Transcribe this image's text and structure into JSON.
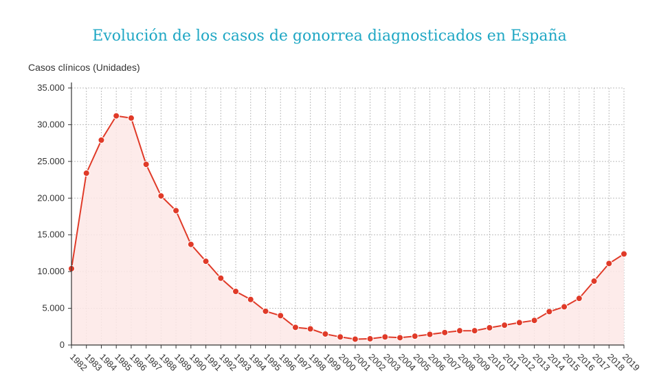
{
  "chart_data": {
    "type": "area",
    "title": "Evolución de los casos de gonorrea diagnosticados en España",
    "ylabel": "Casos clínicos (Unidades)",
    "xlabel": "",
    "x": [
      "1982",
      "1983",
      "1984",
      "1985",
      "1986",
      "1987",
      "1988",
      "1989",
      "1990",
      "1991",
      "1992",
      "1993",
      "1994",
      "1995",
      "1996",
      "1997",
      "1998",
      "1999",
      "2000",
      "2001",
      "2002",
      "2003",
      "2004",
      "2005",
      "2006",
      "2007",
      "2008",
      "2009",
      "2010",
      "2011",
      "2012",
      "2013",
      "2014",
      "2015",
      "2016",
      "2017",
      "2018",
      "2019"
    ],
    "values": [
      10400,
      23400,
      27900,
      31200,
      30900,
      24600,
      20300,
      18300,
      13700,
      11400,
      9100,
      7300,
      6200,
      4600,
      4000,
      2400,
      2200,
      1500,
      1100,
      800,
      850,
      1100,
      1000,
      1200,
      1450,
      1700,
      1950,
      1950,
      2350,
      2700,
      3050,
      3350,
      4550,
      5200,
      6350,
      8700,
      11100,
      12400
    ],
    "ylim": [
      0,
      35000
    ],
    "yticks": [
      "0",
      "5.000",
      "10.000",
      "15.000",
      "20.000",
      "25.000",
      "30.000",
      "35.000"
    ],
    "grid": true,
    "colors": {
      "line": "#e03a28",
      "fill": "#fde8e6",
      "grid": "#bbbbbb",
      "title": "#1fa7c4"
    }
  }
}
